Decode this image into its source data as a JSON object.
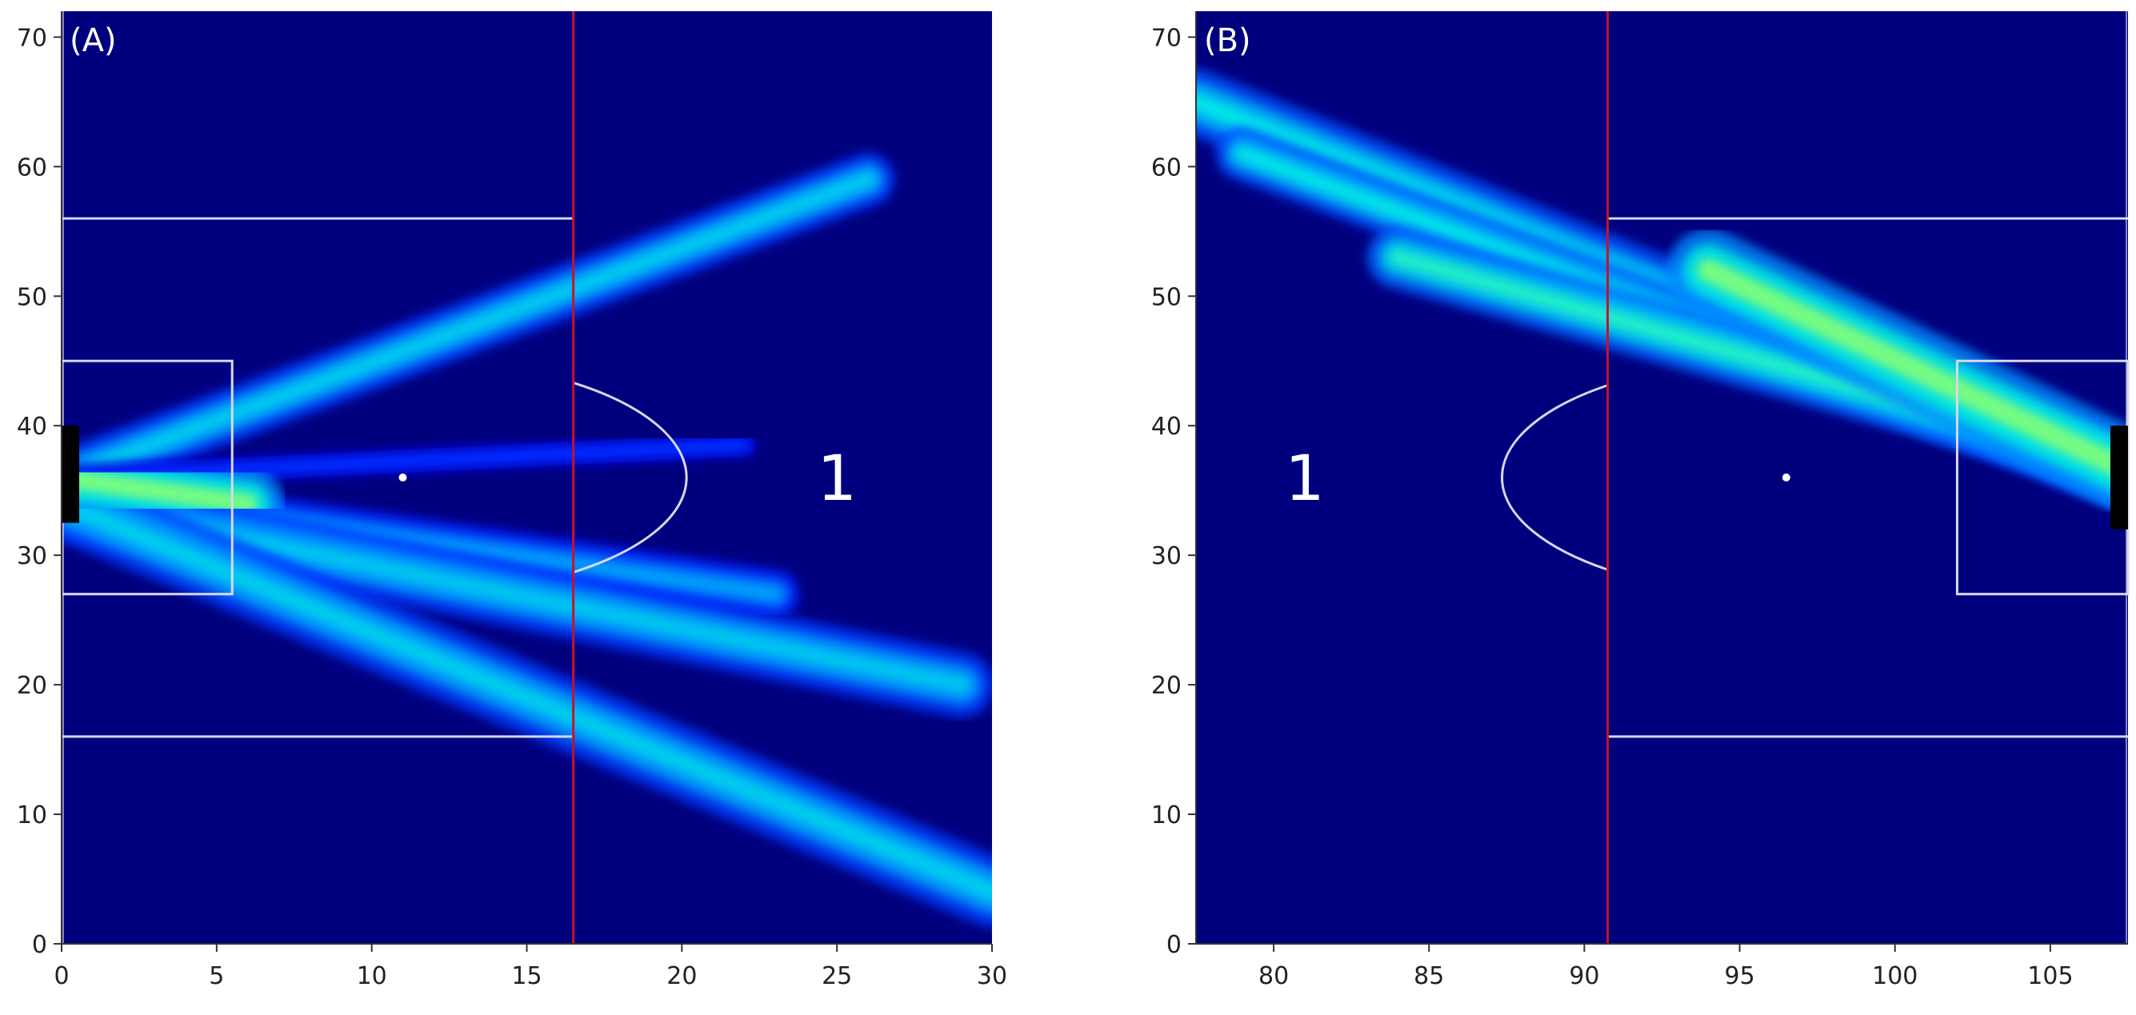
{
  "colors": {
    "pitch": "#00007f",
    "lines": "#d8d8f0",
    "vline": "#c8102e",
    "goal": "#000000"
  },
  "chart_data": [
    {
      "type": "heatmap",
      "panel_label": "(A)",
      "zone_label": "1",
      "xlim": [
        0,
        30
      ],
      "ylim": [
        0,
        72
      ],
      "xticks": [
        0,
        5,
        10,
        15,
        20,
        25,
        30
      ],
      "yticks": [
        0,
        10,
        20,
        30,
        40,
        50,
        60,
        70
      ],
      "vertical_line_x": 16.5,
      "penalty_box": {
        "x_from": 0,
        "x_to": 16.5,
        "y_from": 16,
        "y_to": 56
      },
      "goal_area": {
        "x_from": 0,
        "x_to": 5.5,
        "y_from": 27,
        "y_to": 45
      },
      "penalty_spot": [
        11,
        36
      ],
      "arc": {
        "center_x": 11,
        "center_y": 36,
        "radius": 9.15
      },
      "goal": {
        "x": 0,
        "y_from": 32.5,
        "y_to": 40
      },
      "zone_label_pos": [
        25,
        36
      ],
      "beams": [
        {
          "from": [
            0,
            36
          ],
          "to": [
            26,
            59
          ],
          "width": 2.6,
          "intensity": 0.62
        },
        {
          "from": [
            0,
            36
          ],
          "to": [
            22,
            38.5
          ],
          "width": 1.2,
          "intensity": 0.28
        },
        {
          "from": [
            0,
            35
          ],
          "to": [
            23,
            27
          ],
          "width": 2.4,
          "intensity": 0.5
        },
        {
          "from": [
            0,
            34
          ],
          "to": [
            29,
            20
          ],
          "width": 3.2,
          "intensity": 0.6
        },
        {
          "from": [
            0,
            34
          ],
          "to": [
            30,
            4
          ],
          "width": 3.4,
          "intensity": 0.62
        },
        {
          "from": [
            0,
            36
          ],
          "to": [
            6,
            34
          ],
          "width": 3.5,
          "intensity": 0.95
        }
      ]
    },
    {
      "type": "heatmap",
      "panel_label": "(B)",
      "zone_label": "1",
      "xlim": [
        77.5,
        107.5
      ],
      "ylim": [
        0,
        72
      ],
      "xticks": [
        80,
        85,
        90,
        95,
        100,
        105
      ],
      "yticks": [
        0,
        10,
        20,
        30,
        40,
        50,
        60,
        70
      ],
      "vertical_line_x": 90.75,
      "penalty_box": {
        "x_from": 90.75,
        "x_to": 107.5,
        "y_from": 16,
        "y_to": 56
      },
      "goal_area": {
        "x_from": 102,
        "x_to": 107.5,
        "y_from": 27,
        "y_to": 45
      },
      "penalty_spot": [
        96.5,
        36
      ],
      "arc": {
        "center_x": 96.5,
        "center_y": 36,
        "radius": 9.15
      },
      "goal": {
        "x": 107.5,
        "y_from": 32,
        "y_to": 40
      },
      "zone_label_pos": [
        81,
        36
      ],
      "beams": [
        {
          "from": [
            77.5,
            65
          ],
          "to": [
            107.5,
            36
          ],
          "width": 3.2,
          "intensity": 0.7
        },
        {
          "from": [
            79,
            61
          ],
          "to": [
            107.5,
            35.5
          ],
          "width": 2.6,
          "intensity": 0.7
        },
        {
          "from": [
            84,
            53
          ],
          "to": [
            107.5,
            37
          ],
          "width": 3.0,
          "intensity": 0.78
        },
        {
          "from": [
            94,
            52
          ],
          "to": [
            107.5,
            36.5
          ],
          "width": 4.0,
          "intensity": 0.95
        }
      ]
    }
  ]
}
